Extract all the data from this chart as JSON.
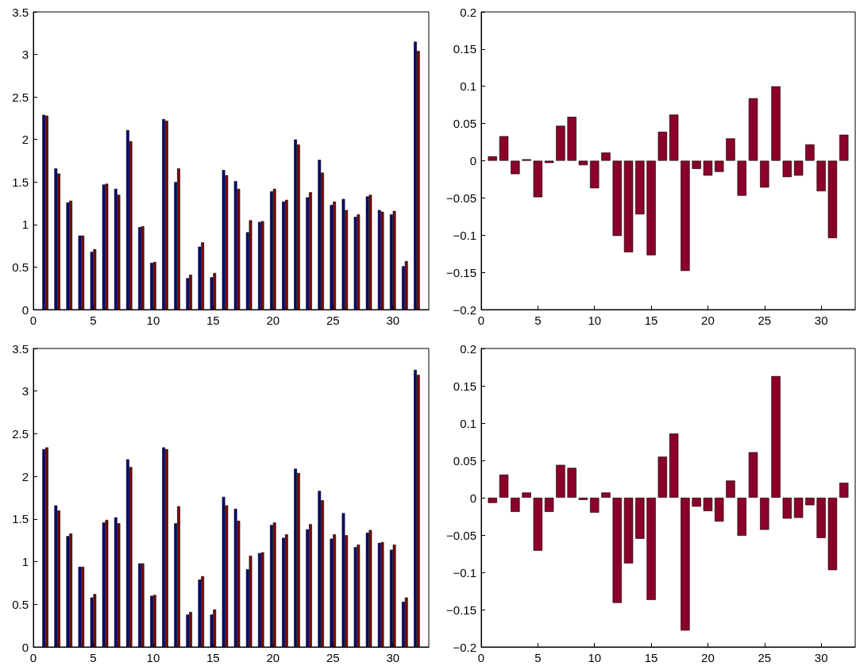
{
  "chart_data": [
    {
      "type": "bar",
      "x": [
        1,
        2,
        3,
        4,
        5,
        6,
        7,
        8,
        9,
        10,
        11,
        12,
        13,
        14,
        15,
        16,
        17,
        18,
        19,
        20,
        21,
        22,
        23,
        24,
        25,
        26,
        27,
        28,
        29,
        30,
        31,
        32
      ],
      "series": [
        {
          "color": "#000080",
          "values": [
            2.29,
            1.66,
            1.26,
            0.87,
            0.68,
            1.47,
            1.42,
            2.11,
            0.97,
            0.55,
            2.24,
            1.5,
            0.37,
            0.74,
            0.38,
            1.64,
            1.51,
            0.91,
            1.03,
            1.39,
            1.27,
            2.0,
            1.32,
            1.76,
            1.23,
            1.3,
            1.09,
            1.33,
            1.17,
            1.12,
            0.51,
            3.15
          ]
        },
        {
          "color": "#800000",
          "values": [
            2.28,
            1.6,
            1.28,
            0.87,
            0.71,
            1.48,
            1.35,
            1.98,
            0.98,
            0.56,
            2.22,
            1.66,
            0.41,
            0.79,
            0.43,
            1.58,
            1.42,
            1.05,
            1.04,
            1.42,
            1.29,
            1.94,
            1.38,
            1.61,
            1.27,
            1.17,
            1.12,
            1.35,
            1.15,
            1.16,
            0.57,
            3.04
          ]
        }
      ],
      "xlim": [
        0,
        33
      ],
      "xticks": [
        0,
        5,
        10,
        15,
        20,
        25,
        30
      ],
      "ylim": [
        0,
        3.5
      ],
      "yticks": [
        0,
        0.5,
        1,
        1.5,
        2,
        2.5,
        3,
        3.5
      ],
      "grid": false
    },
    {
      "type": "bar",
      "x": [
        1,
        2,
        3,
        4,
        5,
        6,
        7,
        8,
        9,
        10,
        11,
        12,
        13,
        14,
        15,
        16,
        17,
        18,
        19,
        20,
        21,
        22,
        23,
        24,
        25,
        26,
        27,
        28,
        29,
        30,
        31,
        32
      ],
      "series": [
        {
          "color": "#8a0029",
          "values": [
            0.006,
            0.033,
            -0.018,
            0.002,
            -0.049,
            -0.003,
            0.047,
            0.059,
            -0.006,
            -0.037,
            0.011,
            -0.101,
            -0.123,
            -0.072,
            -0.127,
            0.039,
            0.062,
            -0.148,
            -0.011,
            -0.02,
            -0.015,
            0.03,
            -0.047,
            0.084,
            -0.036,
            0.1,
            -0.022,
            -0.02,
            0.022,
            -0.041,
            -0.104,
            0.035
          ]
        }
      ],
      "xlim": [
        0,
        33
      ],
      "xticks": [
        0,
        5,
        10,
        15,
        20,
        25,
        30
      ],
      "ylim": [
        -0.2,
        0.2
      ],
      "yticks": [
        {
          "value": -0.2,
          "label": "−0.2"
        },
        {
          "value": -0.15,
          "label": "−0.15"
        },
        {
          "value": -0.1,
          "label": "−0.1"
        },
        {
          "value": -0.05,
          "label": "−0.05"
        },
        0,
        0.05,
        0.1,
        0.15,
        0.2
      ],
      "grid": false
    },
    {
      "type": "bar",
      "x": [
        1,
        2,
        3,
        4,
        5,
        6,
        7,
        8,
        9,
        10,
        11,
        12,
        13,
        14,
        15,
        16,
        17,
        18,
        19,
        20,
        21,
        22,
        23,
        24,
        25,
        26,
        27,
        28,
        29,
        30,
        31,
        32
      ],
      "series": [
        {
          "color": "#000080",
          "values": [
            2.32,
            1.66,
            1.3,
            0.94,
            0.58,
            1.46,
            1.52,
            2.2,
            0.98,
            0.6,
            2.34,
            1.45,
            0.38,
            0.79,
            0.38,
            1.76,
            1.62,
            0.91,
            1.1,
            1.43,
            1.28,
            2.09,
            1.38,
            1.83,
            1.27,
            1.57,
            1.17,
            1.34,
            1.22,
            1.14,
            0.53,
            3.25
          ]
        },
        {
          "color": "#800000",
          "values": [
            2.34,
            1.6,
            1.33,
            0.94,
            0.62,
            1.49,
            1.45,
            2.11,
            0.98,
            0.61,
            2.32,
            1.65,
            0.41,
            0.83,
            0.44,
            1.66,
            1.48,
            1.07,
            1.11,
            1.46,
            1.32,
            2.04,
            1.44,
            1.72,
            1.32,
            1.31,
            1.2,
            1.37,
            1.23,
            1.2,
            0.58,
            3.19
          ]
        }
      ],
      "xlim": [
        0,
        33
      ],
      "xticks": [
        0,
        5,
        10,
        15,
        20,
        25,
        30
      ],
      "ylim": [
        0,
        3.5
      ],
      "yticks": [
        0,
        0.5,
        1,
        1.5,
        2,
        2.5,
        3,
        3.5
      ],
      "grid": false
    },
    {
      "type": "bar",
      "x": [
        1,
        2,
        3,
        4,
        5,
        6,
        7,
        8,
        9,
        10,
        11,
        12,
        13,
        14,
        15,
        16,
        17,
        18,
        19,
        20,
        21,
        22,
        23,
        24,
        25,
        26,
        27,
        28,
        29,
        30,
        31,
        32
      ],
      "series": [
        {
          "color": "#8a0029",
          "values": [
            -0.007,
            0.031,
            -0.019,
            0.007,
            -0.071,
            -0.019,
            0.044,
            0.04,
            -0.003,
            -0.02,
            0.007,
            -0.141,
            -0.088,
            -0.055,
            -0.137,
            0.055,
            0.086,
            -0.178,
            -0.012,
            -0.018,
            -0.032,
            0.023,
            -0.051,
            0.061,
            -0.043,
            0.163,
            -0.028,
            -0.027,
            -0.01,
            -0.054,
            -0.097,
            0.02
          ]
        }
      ],
      "xlim": [
        0,
        33
      ],
      "xticks": [
        0,
        5,
        10,
        15,
        20,
        25,
        30
      ],
      "ylim": [
        -0.2,
        0.2
      ],
      "yticks": [
        {
          "value": -0.2,
          "label": "−0.2"
        },
        {
          "value": -0.15,
          "label": "−0.15"
        },
        {
          "value": -0.1,
          "label": "−0.1"
        },
        {
          "value": -0.05,
          "label": "−0.05"
        },
        0,
        0.05,
        0.1,
        0.15,
        0.2
      ],
      "grid": false
    }
  ]
}
